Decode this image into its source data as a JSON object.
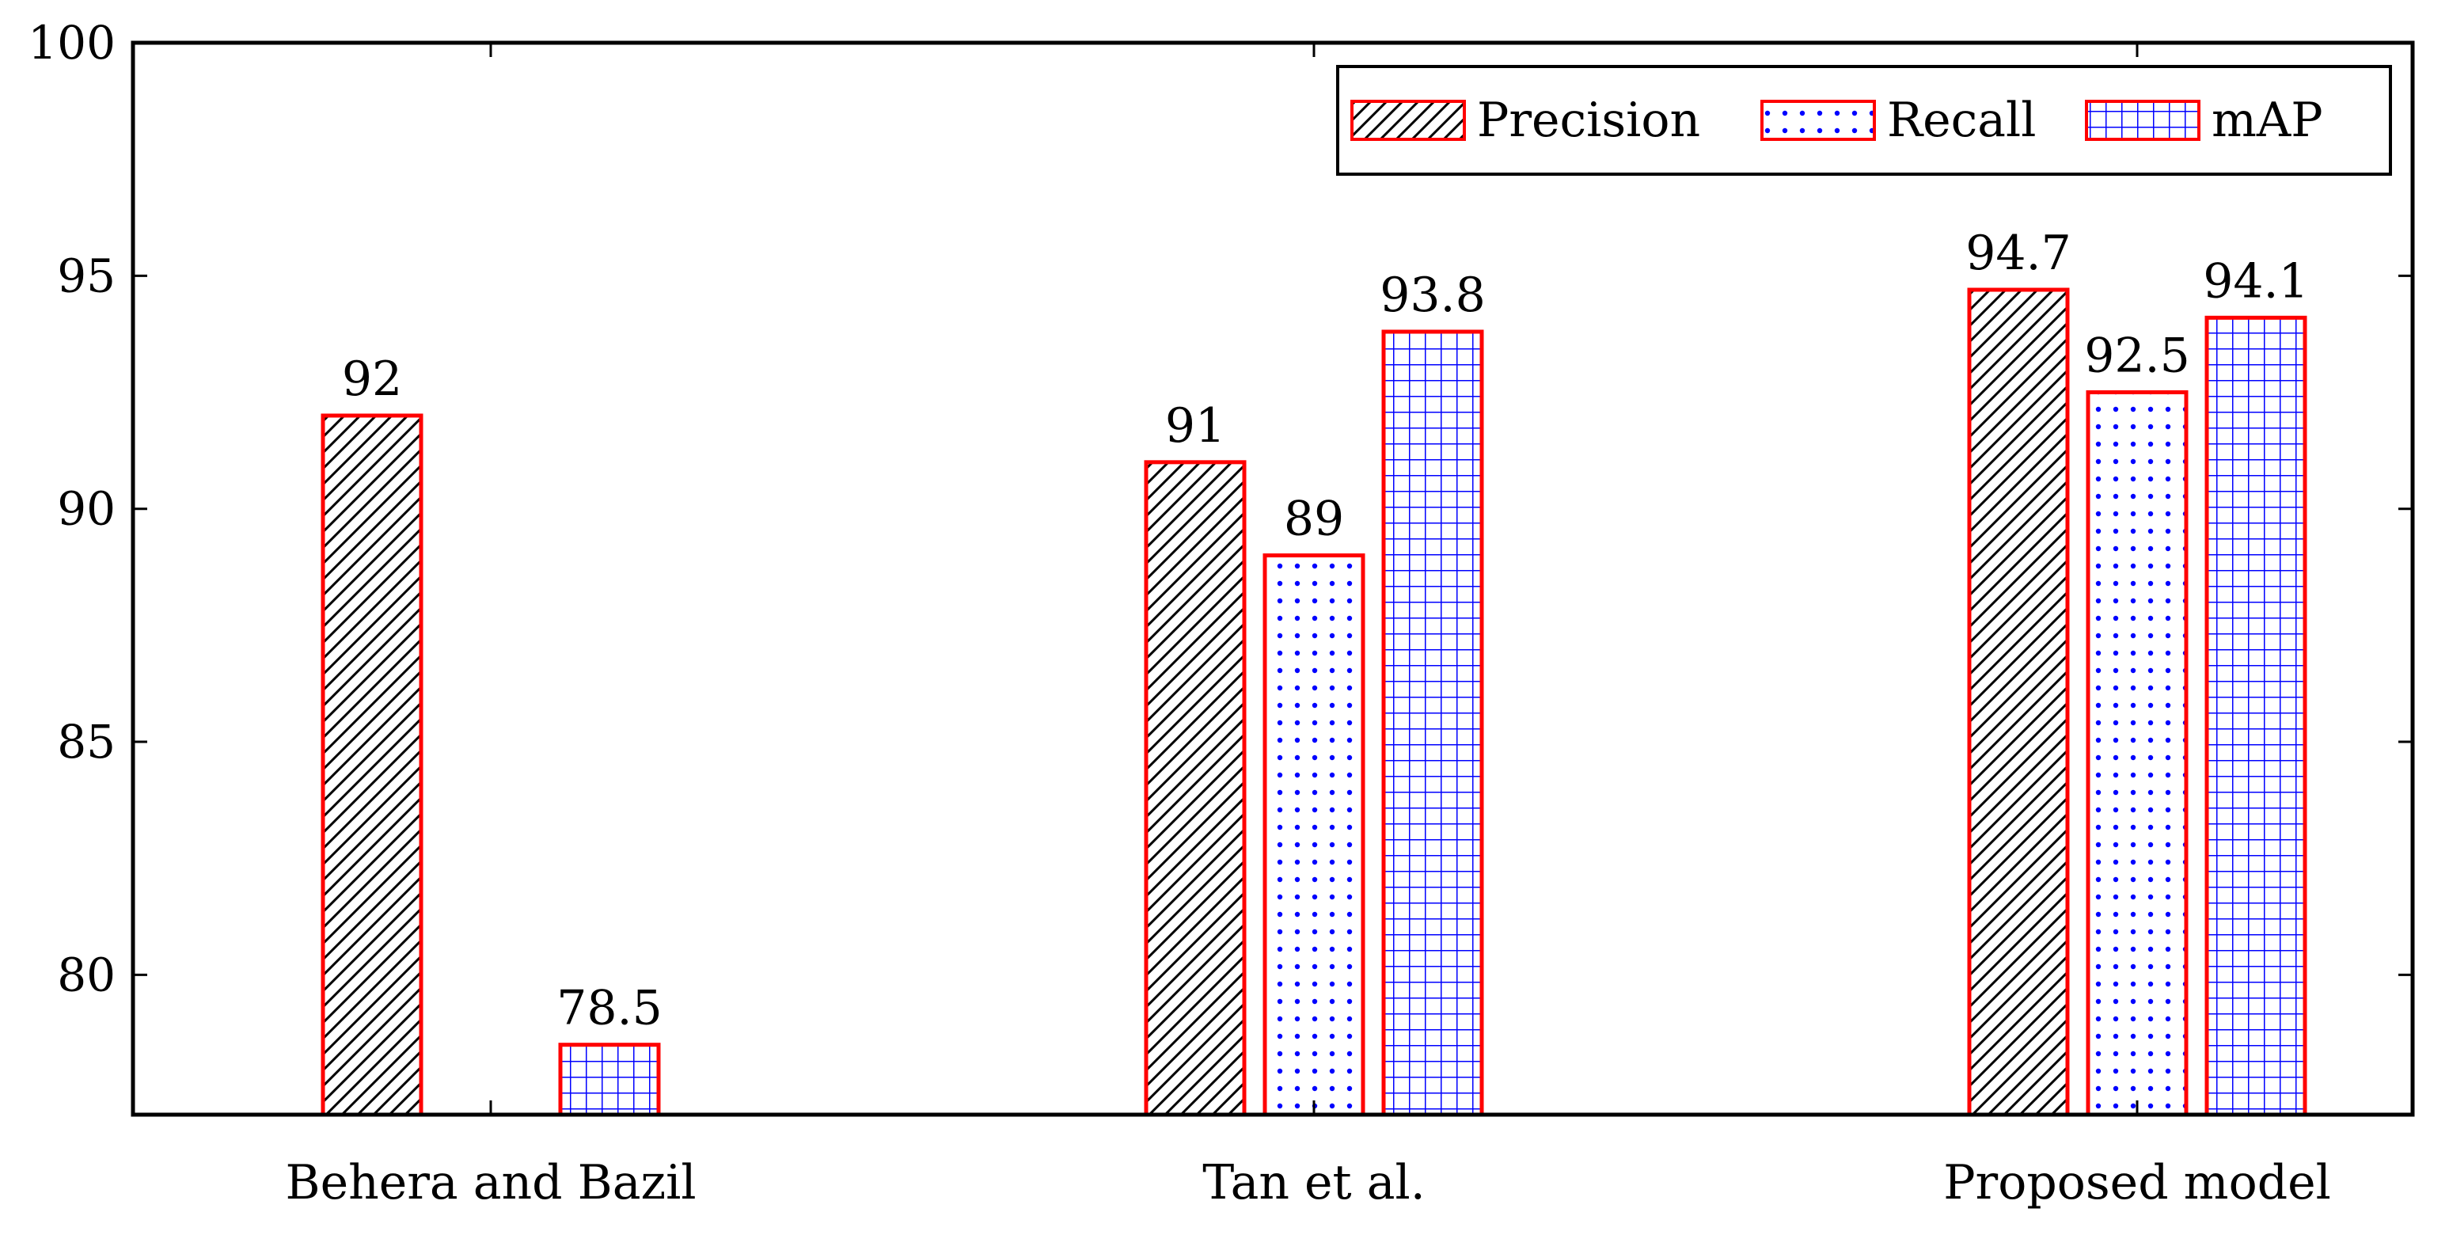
{
  "chart_data": {
    "type": "bar",
    "categories": [
      "Behera and Bazil",
      "Tan et al.",
      "Proposed model"
    ],
    "series": [
      {
        "name": "Precision",
        "values": [
          92,
          91,
          94.7
        ],
        "pattern": "north-east-lines",
        "pattern_color": "#000000",
        "edge_color": "#ff0000"
      },
      {
        "name": "Recall",
        "values": [
          77,
          89,
          92.5
        ],
        "pattern": "dots",
        "pattern_color": "#0000ff",
        "edge_color": "#ff0000"
      },
      {
        "name": "mAP",
        "values": [
          78.5,
          93.8,
          94.1
        ],
        "pattern": "grid",
        "pattern_color": "#0000ff",
        "edge_color": "#ff0000"
      }
    ],
    "data_labels": [
      [
        "92",
        "91",
        "94.7"
      ],
      [
        "",
        "89",
        "92.5"
      ],
      [
        "78.5",
        "93.8",
        "94.1"
      ]
    ],
    "title": "",
    "xlabel": "",
    "ylabel": "",
    "ylim": [
      77,
      100
    ],
    "yticks": [
      80,
      85,
      90,
      95,
      100
    ],
    "ytick_labels": [
      "80",
      "85",
      "90",
      "95",
      "100"
    ],
    "grid": false,
    "legend_position": "top-right"
  }
}
